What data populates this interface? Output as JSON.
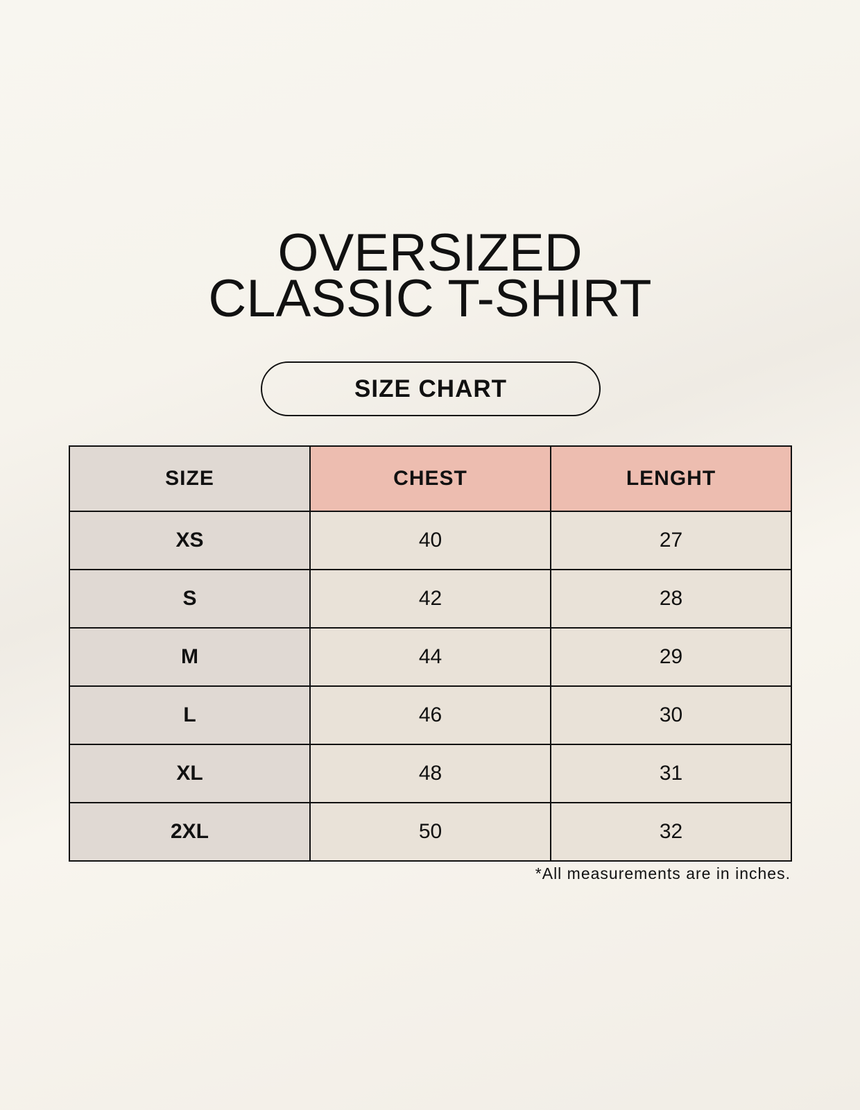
{
  "title": {
    "line1": "OVERSIZED",
    "line2": "CLASSIC T-SHIRT"
  },
  "subtitle_badge": "SIZE CHART",
  "table": {
    "headers": [
      "SIZE",
      "CHEST",
      "LENGHT"
    ],
    "rows": [
      [
        "XS",
        "40",
        "27"
      ],
      [
        "S",
        "42",
        "28"
      ],
      [
        "M",
        "44",
        "29"
      ],
      [
        "L",
        "46",
        "30"
      ],
      [
        "XL",
        "48",
        "31"
      ],
      [
        "2XL",
        "50",
        "32"
      ]
    ]
  },
  "footnote": "*All measurements are in inches.",
  "colors": {
    "header_accent": "#edbdb0",
    "size_column": "#e0d9d3",
    "value_cells": "#e9e2d8"
  }
}
